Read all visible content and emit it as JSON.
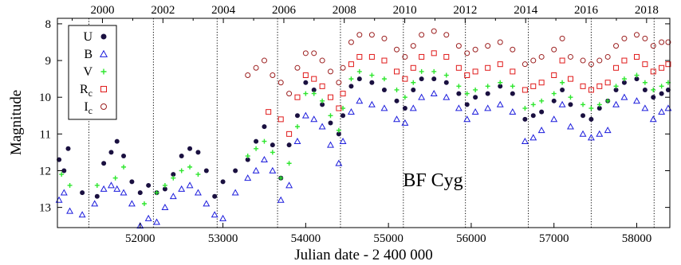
{
  "chart_data": {
    "type": "scatter",
    "title": "BF Cyg",
    "xlabel": "Julian date - 2 400 000",
    "ylabel": "Magnitude",
    "xlim": [
      51000,
      58400
    ],
    "ylim": [
      13.55,
      7.85
    ],
    "y_inverted": true,
    "grid": false,
    "legend_position": "top-left",
    "x_ticks": [
      52000,
      53000,
      54000,
      55000,
      56000,
      57000,
      58000
    ],
    "x_tick_labels": [
      "52000",
      "53000",
      "54000",
      "55000",
      "56000",
      "57000",
      "58000"
    ],
    "y_ticks": [
      8,
      9,
      10,
      11,
      12,
      13
    ],
    "y_tick_labels": [
      "8",
      "9",
      "10",
      "11",
      "12",
      "13"
    ],
    "top_axis": {
      "label_years": [
        "2000",
        "2002",
        "2004",
        "2006",
        "2008",
        "2010",
        "2012",
        "2014",
        "2016",
        "2018"
      ],
      "label_jd": [
        51544,
        52275,
        53005,
        53736,
        54466,
        55197,
        55927,
        56658,
        57388,
        58119
      ],
      "minor_tick_jd": [
        51179,
        51910,
        52640,
        53371,
        54101,
        54832,
        55562,
        56293,
        57023,
        57754
      ]
    },
    "vertical_markers_jd": [
      51380,
      52160,
      52930,
      53660,
      54420,
      55180,
      55930,
      56690,
      57450,
      58210
    ],
    "series": [
      {
        "name": "U",
        "marker": "filled-circle",
        "color": "#1a1040",
        "x": [
          51020,
          51080,
          51130,
          51300,
          51480,
          51560,
          51650,
          51720,
          51800,
          51900,
          52000,
          52100,
          52200,
          52300,
          52400,
          52500,
          52600,
          52700,
          52800,
          52900,
          53000,
          53150,
          53300,
          53400,
          53500,
          53600,
          53700,
          53800,
          53900,
          54000,
          54100,
          54200,
          54300,
          54400,
          54450,
          54550,
          54650,
          54800,
          54950,
          55100,
          55200,
          55300,
          55400,
          55550,
          55700,
          55850,
          55950,
          56050,
          56200,
          56350,
          56500,
          56650,
          56750,
          56850,
          57000,
          57100,
          57200,
          57350,
          57450,
          57550,
          57650,
          57750,
          57850,
          58000,
          58100,
          58200,
          58300,
          58380
        ],
        "y": [
          11.7,
          12.0,
          11.4,
          12.6,
          12.7,
          11.8,
          11.5,
          11.2,
          11.6,
          12.3,
          12.6,
          12.4,
          12.6,
          12.5,
          12.1,
          11.6,
          11.4,
          11.5,
          12.0,
          12.7,
          12.3,
          12.0,
          11.7,
          11.2,
          10.8,
          11.3,
          12.2,
          11.3,
          10.5,
          9.6,
          9.8,
          10.2,
          10.7,
          11.0,
          10.5,
          9.7,
          9.5,
          9.6,
          9.8,
          10.1,
          10.3,
          9.8,
          9.5,
          9.5,
          9.6,
          9.9,
          10.2,
          10.0,
          9.9,
          9.7,
          9.9,
          10.6,
          10.5,
          10.4,
          10.1,
          9.8,
          10.2,
          10.5,
          10.6,
          10.3,
          10.1,
          9.8,
          9.6,
          9.5,
          9.8,
          10.0,
          9.9,
          9.8
        ]
      },
      {
        "name": "B",
        "marker": "open-triangle",
        "color": "#1c1cdc",
        "x": [
          51020,
          51080,
          51150,
          51300,
          51450,
          51560,
          51650,
          51720,
          51800,
          51900,
          52000,
          52100,
          52200,
          52300,
          52400,
          52500,
          52600,
          52700,
          52800,
          52900,
          53000,
          53150,
          53300,
          53400,
          53500,
          53600,
          53700,
          53800,
          53900,
          54000,
          54100,
          54200,
          54300,
          54400,
          54450,
          54550,
          54650,
          54800,
          54950,
          55100,
          55200,
          55300,
          55400,
          55550,
          55700,
          55850,
          55950,
          56050,
          56200,
          56350,
          56500,
          56650,
          56750,
          56850,
          57000,
          57100,
          57200,
          57350,
          57450,
          57550,
          57650,
          57750,
          57850,
          58000,
          58100,
          58200,
          58300,
          58380
        ],
        "y": [
          12.8,
          12.6,
          13.1,
          13.2,
          12.9,
          12.5,
          12.4,
          12.5,
          12.6,
          12.9,
          13.5,
          13.3,
          13.4,
          13.0,
          12.7,
          12.5,
          12.4,
          12.6,
          12.9,
          13.2,
          13.3,
          12.6,
          12.2,
          12.0,
          11.7,
          12.0,
          12.8,
          12.4,
          11.2,
          10.5,
          10.6,
          10.8,
          11.3,
          11.8,
          11.2,
          10.4,
          10.1,
          10.2,
          10.3,
          10.6,
          10.7,
          10.3,
          10.0,
          9.9,
          10.0,
          10.3,
          10.6,
          10.4,
          10.3,
          10.2,
          10.4,
          11.2,
          11.1,
          10.9,
          10.6,
          10.2,
          10.8,
          11.0,
          11.1,
          11.0,
          10.9,
          10.2,
          10.0,
          10.1,
          10.3,
          10.6,
          10.4,
          10.3
        ]
      },
      {
        "name": "V",
        "marker": "plus",
        "color": "#2ee62e",
        "x": [
          51050,
          51150,
          51480,
          51700,
          51800,
          52050,
          52200,
          52300,
          52400,
          52500,
          52600,
          52700,
          53300,
          53400,
          53500,
          53600,
          53700,
          53800,
          53900,
          54000,
          54100,
          54200,
          54300,
          54400,
          54450,
          54550,
          54650,
          54800,
          54950,
          55100,
          55200,
          55300,
          55400,
          55550,
          55700,
          55850,
          55950,
          56050,
          56200,
          56350,
          56500,
          56650,
          56750,
          56850,
          57000,
          57100,
          57200,
          57350,
          57450,
          57550,
          57650,
          57750,
          57850,
          58000,
          58100,
          58200,
          58300,
          58380
        ],
        "y": [
          12.1,
          12.4,
          12.4,
          12.2,
          11.9,
          12.9,
          12.6,
          12.4,
          12.2,
          12.0,
          11.9,
          12.1,
          11.6,
          11.4,
          11.2,
          11.5,
          12.2,
          11.8,
          10.8,
          9.9,
          9.9,
          10.1,
          10.5,
          10.9,
          10.3,
          9.5,
          9.3,
          9.4,
          9.5,
          9.8,
          10.0,
          9.6,
          9.3,
          9.3,
          9.4,
          9.7,
          9.9,
          9.8,
          9.7,
          9.6,
          9.7,
          10.3,
          10.2,
          10.1,
          9.9,
          9.6,
          10.0,
          10.2,
          10.3,
          10.2,
          10.1,
          9.7,
          9.5,
          9.4,
          9.6,
          9.8,
          9.7,
          9.6
        ]
      },
      {
        "name": "Rc",
        "marker": "open-square",
        "color": "#e01a1a",
        "x": [
          53550,
          53700,
          53800,
          53900,
          54000,
          54100,
          54200,
          54300,
          54400,
          54450,
          54550,
          54650,
          54800,
          54950,
          55100,
          55200,
          55300,
          55400,
          55550,
          55700,
          55850,
          55950,
          56050,
          56200,
          56350,
          56500,
          56650,
          56750,
          56850,
          57000,
          57100,
          57200,
          57350,
          57450,
          57550,
          57650,
          57750,
          57850,
          58000,
          58100,
          58200,
          58300,
          58380
        ],
        "y": [
          10.4,
          10.6,
          11.0,
          10.0,
          9.4,
          9.5,
          9.7,
          10.0,
          10.3,
          9.9,
          9.1,
          8.9,
          8.9,
          9.0,
          9.3,
          9.5,
          9.2,
          8.9,
          8.8,
          8.9,
          9.2,
          9.4,
          9.3,
          9.2,
          9.1,
          9.3,
          9.8,
          9.7,
          9.6,
          9.4,
          9.0,
          9.5,
          9.7,
          9.8,
          9.7,
          9.6,
          9.2,
          9.0,
          8.9,
          9.1,
          9.3,
          9.2,
          9.1
        ]
      },
      {
        "name": "Ic",
        "marker": "open-circle",
        "color": "#9c2020",
        "x": [
          53300,
          53400,
          53500,
          53600,
          53700,
          53800,
          53900,
          54000,
          54100,
          54200,
          54300,
          54400,
          54450,
          54550,
          54650,
          54800,
          54950,
          55100,
          55200,
          55300,
          55400,
          55550,
          55700,
          55850,
          55950,
          56050,
          56200,
          56350,
          56500,
          56650,
          56750,
          56850,
          57000,
          57100,
          57200,
          57350,
          57450,
          57550,
          57650,
          57750,
          57850,
          58000,
          58100,
          58200,
          58300,
          58380
        ],
        "y": [
          9.4,
          9.2,
          9.0,
          9.4,
          9.6,
          9.9,
          9.2,
          8.8,
          8.8,
          9.0,
          9.3,
          9.6,
          9.2,
          8.5,
          8.3,
          8.3,
          8.4,
          8.7,
          8.9,
          8.6,
          8.3,
          8.2,
          8.3,
          8.6,
          8.8,
          8.7,
          8.6,
          8.5,
          8.7,
          9.1,
          9.0,
          8.9,
          8.7,
          8.4,
          8.9,
          9.0,
          9.1,
          9.0,
          8.9,
          8.6,
          8.4,
          8.3,
          8.4,
          8.6,
          8.5,
          8.5
        ]
      }
    ]
  }
}
